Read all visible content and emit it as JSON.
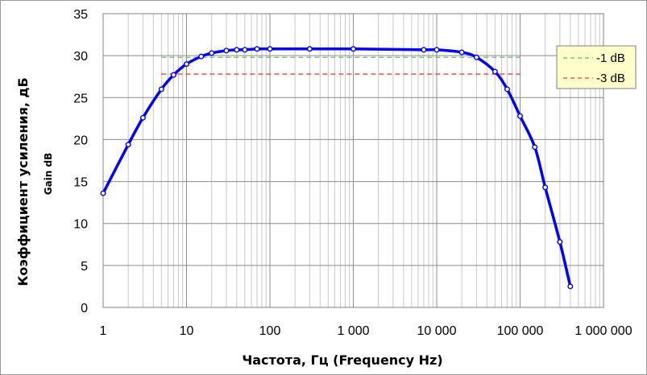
{
  "chart_data": {
    "type": "line",
    "x_scale": "log",
    "xlim": [
      1,
      1000000
    ],
    "ylim": [
      0,
      35
    ],
    "grid": true,
    "x_ticks": [
      1,
      10,
      100,
      1000,
      10000,
      100000,
      1000000
    ],
    "x_tick_labels": [
      "1",
      "10",
      "100",
      "1 000",
      "10 000",
      "100 000",
      "1 000 000"
    ],
    "y_ticks": [
      0,
      5,
      10,
      15,
      20,
      25,
      30,
      35
    ],
    "y_tick_labels": [
      "0",
      "5",
      "10",
      "15",
      "20",
      "25",
      "30",
      "35"
    ],
    "xlabel": "Частота,  Гц    (Frequency Hz)",
    "ylabel": "Коэффициент усиления, дБ",
    "ylabel_sub": "Gain dB",
    "legend_position": "right",
    "series": [
      {
        "color": "#0000ff",
        "x": [
          1,
          2,
          3,
          5,
          7,
          10,
          15,
          20,
          30,
          40,
          50,
          70,
          100,
          300,
          1000,
          7000,
          10000,
          20000,
          30000,
          50000,
          70000,
          100000,
          150000,
          200000,
          300000,
          400000
        ],
        "y": [
          13.6,
          19.4,
          22.6,
          26.0,
          27.7,
          29.0,
          29.9,
          30.3,
          30.6,
          30.7,
          30.7,
          30.8,
          30.8,
          30.8,
          30.8,
          30.7,
          30.7,
          30.4,
          29.8,
          28.1,
          26.0,
          22.8,
          19.1,
          14.3,
          7.8,
          2.5
        ]
      }
    ],
    "reference_lines": [
      {
        "name": "-1 dB",
        "y": 29.8,
        "x_start": 5,
        "x_end": 100000,
        "color": "#66bb66"
      },
      {
        "name": "-3 dB",
        "y": 27.8,
        "x_start": 5,
        "x_end": 100000,
        "color": "#dd4444"
      }
    ]
  }
}
